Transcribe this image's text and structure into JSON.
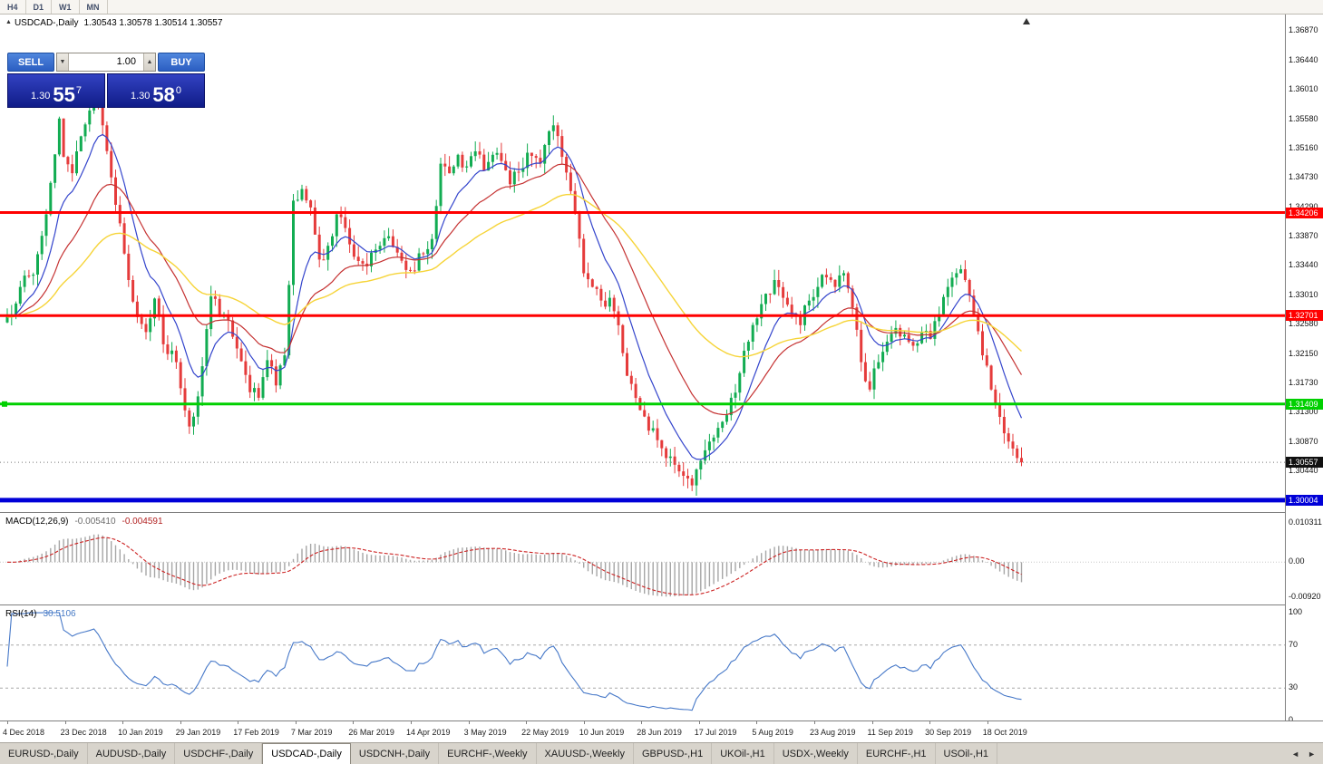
{
  "toolbar": {
    "timeframes": [
      "H4",
      "D1",
      "W1",
      "MN"
    ]
  },
  "chart_header": {
    "marker": "▲",
    "symbol": "USDCAD-,Daily",
    "ohlc": "1.30543 1.30578 1.30514 1.30557"
  },
  "trade_panel": {
    "sell_label": "SELL",
    "buy_label": "BUY",
    "volume": "1.00",
    "down_glyph": "▼",
    "up_glyph": "▲",
    "sell_price": {
      "prefix": "1.30",
      "big": "55",
      "sup": "7"
    },
    "buy_price": {
      "prefix": "1.30",
      "big": "58",
      "sup": "0"
    }
  },
  "tabs": {
    "items": [
      "EURUSD-,Daily",
      "AUDUSD-,Daily",
      "USDCHF-,Daily",
      "USDCAD-,Daily",
      "USDCNH-,Daily",
      "EURCHF-,Weekly",
      "XAUUSD-,Weekly",
      "GBPUSD-,H1",
      "UKOil-,H1",
      "USDX-,Weekly",
      "EURCHF-,H1",
      "USOil-,H1"
    ],
    "active_index": 3,
    "scroll_left": "◄",
    "scroll_right": "►"
  },
  "chart_data": {
    "type": "candlestick",
    "symbol": "USDCAD",
    "timeframe": "Daily",
    "seed": 7,
    "candle_count": 235,
    "main_ylim": [
      1.2983,
      1.371
    ],
    "colors": {
      "up": "#12AC52",
      "down": "#E53B3B",
      "macd_bar": "#A6A6A6",
      "macd_signal": "#CC2222",
      "rsi_line": "#4678C8",
      "current_tag": "#101010"
    },
    "moving_averages": [
      {
        "period": 10,
        "color": "#3344CC",
        "width": 1.2
      },
      {
        "period": 25,
        "color": "#C53131",
        "width": 1.2
      },
      {
        "period": 55,
        "color": "#F6D438",
        "width": 1.4
      }
    ],
    "close_waypoints": [
      [
        0,
        1.3268
      ],
      [
        3,
        1.3312
      ],
      [
        6,
        1.333
      ],
      [
        9,
        1.3418
      ],
      [
        12,
        1.3558
      ],
      [
        13,
        1.3502
      ],
      [
        15,
        1.3478
      ],
      [
        17,
        1.3532
      ],
      [
        20,
        1.36
      ],
      [
        22,
        1.3548
      ],
      [
        24,
        1.3472
      ],
      [
        26,
        1.3405
      ],
      [
        28,
        1.3322
      ],
      [
        30,
        1.3268
      ],
      [
        32,
        1.3246
      ],
      [
        34,
        1.3295
      ],
      [
        36,
        1.3228
      ],
      [
        39,
        1.3202
      ],
      [
        42,
        1.3108
      ],
      [
        44,
        1.3152
      ],
      [
        47,
        1.3298
      ],
      [
        50,
        1.327
      ],
      [
        53,
        1.3222
      ],
      [
        56,
        1.3158
      ],
      [
        58,
        1.315
      ],
      [
        60,
        1.3205
      ],
      [
        62,
        1.3168
      ],
      [
        64,
        1.3212
      ],
      [
        66,
        1.3438
      ],
      [
        68,
        1.3455
      ],
      [
        70,
        1.3428
      ],
      [
        72,
        1.3352
      ],
      [
        74,
        1.3372
      ],
      [
        76,
        1.3418
      ],
      [
        78,
        1.3398
      ],
      [
        80,
        1.3356
      ],
      [
        83,
        1.3342
      ],
      [
        86,
        1.3372
      ],
      [
        88,
        1.3386
      ],
      [
        90,
        1.3362
      ],
      [
        93,
        1.3336
      ],
      [
        96,
        1.336
      ],
      [
        98,
        1.3382
      ],
      [
        100,
        1.3492
      ],
      [
        102,
        1.3478
      ],
      [
        104,
        1.3505
      ],
      [
        106,
        1.3488
      ],
      [
        108,
        1.351
      ],
      [
        110,
        1.3482
      ],
      [
        112,
        1.3505
      ],
      [
        114,
        1.3496
      ],
      [
        116,
        1.3462
      ],
      [
        118,
        1.348
      ],
      [
        120,
        1.3508
      ],
      [
        123,
        1.3492
      ],
      [
        126,
        1.3548
      ],
      [
        128,
        1.3502
      ],
      [
        130,
        1.3452
      ],
      [
        133,
        1.3332
      ],
      [
        135,
        1.3312
      ],
      [
        137,
        1.3292
      ],
      [
        139,
        1.3296
      ],
      [
        141,
        1.3256
      ],
      [
        143,
        1.3182
      ],
      [
        146,
        1.3132
      ],
      [
        148,
        1.3102
      ],
      [
        150,
        1.3088
      ],
      [
        152,
        1.3062
      ],
      [
        154,
        1.3052
      ],
      [
        156,
        1.3036
      ],
      [
        158,
        1.3022
      ],
      [
        160,
        1.3058
      ],
      [
        162,
        1.3086
      ],
      [
        164,
        1.3106
      ],
      [
        167,
        1.315
      ],
      [
        169,
        1.3186
      ],
      [
        171,
        1.3232
      ],
      [
        173,
        1.3266
      ],
      [
        175,
        1.3302
      ],
      [
        177,
        1.3322
      ],
      [
        179,
        1.3296
      ],
      [
        181,
        1.3272
      ],
      [
        183,
        1.3256
      ],
      [
        185,
        1.3292
      ],
      [
        187,
        1.3312
      ],
      [
        189,
        1.3326
      ],
      [
        191,
        1.3312
      ],
      [
        193,
        1.3332
      ],
      [
        195,
        1.3282
      ],
      [
        197,
        1.3202
      ],
      [
        199,
        1.3162
      ],
      [
        201,
        1.3202
      ],
      [
        203,
        1.3232
      ],
      [
        205,
        1.3252
      ],
      [
        207,
        1.3242
      ],
      [
        209,
        1.3226
      ],
      [
        211,
        1.3246
      ],
      [
        213,
        1.3236
      ],
      [
        215,
        1.3272
      ],
      [
        217,
        1.3312
      ],
      [
        219,
        1.3332
      ],
      [
        221,
        1.3322
      ],
      [
        223,
        1.3272
      ],
      [
        225,
        1.3212
      ],
      [
        227,
        1.3162
      ],
      [
        229,
        1.3122
      ],
      [
        231,
        1.3086
      ],
      [
        233,
        1.3062
      ],
      [
        234,
        1.30557
      ]
    ],
    "price_axis_labels": [
      "1.36870",
      "1.36440",
      "1.36010",
      "1.35580",
      "1.35160",
      "1.34730",
      "1.34290",
      "1.33870",
      "1.33440",
      "1.33010",
      "1.32580",
      "1.32150",
      "1.31730",
      "1.31300",
      "1.30870",
      "1.30440"
    ],
    "hlines": [
      {
        "price": 1.34206,
        "label": "1.34206",
        "color": "#FF0000",
        "thickness": 3,
        "handle": false
      },
      {
        "price": 1.32701,
        "label": "1.32701",
        "color": "#FF0000",
        "thickness": 3,
        "handle": false
      },
      {
        "price": 1.31409,
        "label": "1.31409",
        "color": "#00D000",
        "thickness": 3,
        "handle": true
      },
      {
        "price": 1.30004,
        "label": "1.30004",
        "color": "#0000D8",
        "thickness": 5,
        "handle": false
      }
    ],
    "current_price": {
      "value": 1.30557,
      "label": "1.30557"
    },
    "date_labels": [
      "4 Dec 2018",
      "23 Dec 2018",
      "10 Jan 2019",
      "29 Jan 2019",
      "17 Feb 2019",
      "7 Mar 2019",
      "26 Mar 2019",
      "14 Apr 2019",
      "3 May 2019",
      "22 May 2019",
      "10 Jun 2019",
      "28 Jun 2019",
      "17 Jul 2019",
      "5 Aug 2019",
      "23 Aug 2019",
      "11 Sep 2019",
      "30 Sep 2019",
      "18 Oct 2019"
    ],
    "indicators": {
      "macd": {
        "label": "MACD(12,26,9)",
        "main_value": "-0.005410",
        "signal_value": "-0.004591",
        "fast": 12,
        "slow": 26,
        "signal": 9,
        "axis_labels": [
          "0.010311",
          "0.00",
          "-0.00920"
        ],
        "ylim": [
          -0.011309,
          0.012661
        ]
      },
      "rsi": {
        "label": "RSI(14)",
        "value": "30.5106",
        "period": 14,
        "axis_labels": [
          "100",
          "70",
          "30",
          "0"
        ],
        "levels": [
          70,
          30
        ],
        "ylim": [
          -0.83,
          105.83
        ]
      }
    }
  }
}
